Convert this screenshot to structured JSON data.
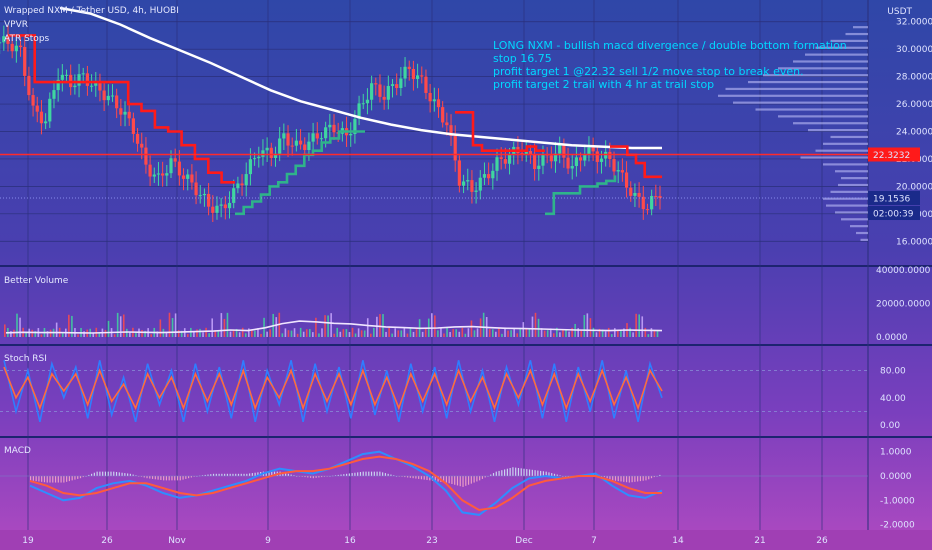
{
  "header": {
    "title": "Wrapped NXM / Tether USD, 4h, HUOBI",
    "currency": "USDT",
    "indicators": [
      "VPVR",
      "ATR Stops"
    ]
  },
  "annotation": {
    "lines": [
      "LONG NXM - bullish macd divergence / double bottom formation",
      "stop 16.75",
      "profit target 1 @22.32 sell 1/2 move stop to break even.",
      "profit target 2 trail with 4 hr at trail stop"
    ]
  },
  "price_badges": {
    "resistance": "22.3232",
    "last": "19.1536",
    "countdown": "02:00:39"
  },
  "panes": {
    "volume": "Better Volume",
    "stoch": "Stoch RSI",
    "macd": "MACD"
  },
  "colors": {
    "atr_stop_down": "#ff1a1a",
    "atr_stop_up": "#2fb38a",
    "moving_average": "#ffffff",
    "resistance_line": "#ff2a2a",
    "annotation": "#00d8ff",
    "stoch_k": "#2f7dff",
    "stoch_d": "#ff6a3d"
  },
  "chart_data": [
    {
      "type": "candlestick",
      "title": "Wrapped NXM / Tether USD, 4h, HUOBI",
      "ylim": [
        15.0,
        33.0
      ],
      "y_ticks": [
        "32.0000",
        "30.0000",
        "28.0000",
        "26.0000",
        "24.0000",
        "22.0000",
        "20.0000",
        "18.0000",
        "16.0000"
      ],
      "x_ticks": [
        "19",
        "26",
        "Nov",
        "9",
        "16",
        "23",
        "Dec",
        "7",
        "14",
        "21",
        "26"
      ],
      "close_series_approx": [
        30.5,
        29.8,
        25.5,
        24.8,
        28.2,
        27.5,
        28.0,
        27.2,
        26.5,
        25.6,
        24.2,
        21.5,
        20.5,
        21.8,
        20.8,
        19.8,
        18.6,
        18.3,
        19.5,
        21.0,
        22.6,
        22.3,
        23.6,
        22.9,
        23.2,
        23.9,
        24.3,
        23.6,
        25.6,
        27.3,
        26.6,
        27.6,
        28.6,
        27.6,
        26.0,
        24.6,
        20.5,
        19.8,
        20.6,
        21.7,
        22.3,
        22.7,
        21.6,
        22.1,
        22.6,
        21.3,
        22.6,
        22.2,
        22.0,
        20.6,
        19.2,
        18.5,
        19.6
      ],
      "atr_stop_series_approx": [
        {
          "side": "down",
          "values": [
            31.0,
            31.0,
            27.6,
            27.6,
            27.6,
            27.6,
            27.6,
            27.6,
            27.6,
            26.0,
            25.5,
            24.3,
            24.0,
            23.0,
            22.0,
            21.0,
            20.3,
            20.3
          ]
        },
        {
          "side": "up",
          "values": [
            18.0,
            18.5,
            18.9,
            19.4,
            20.0,
            20.3,
            20.9,
            21.5,
            22.3,
            22.6,
            23.2,
            23.5,
            24.0,
            24.0,
            24.0,
            24.0
          ]
        },
        {
          "side": "down",
          "values": [
            25.4,
            25.4,
            23.0,
            22.6,
            22.6,
            22.6,
            22.6,
            22.6,
            22.9,
            22.6,
            22.6
          ]
        },
        {
          "side": "up",
          "values": [
            18.0,
            19.5,
            19.5,
            19.5,
            20.0,
            20.0,
            20.2,
            20.4,
            20.8
          ]
        },
        {
          "side": "down",
          "values": [
            22.9,
            22.9,
            22.3,
            21.7,
            20.7,
            20.7,
            20.7
          ]
        }
      ],
      "moving_average_approx": [
        33.0,
        32.6,
        31.8,
        30.8,
        29.9,
        29.0,
        28.0,
        27.0,
        26.2,
        25.6,
        25.0,
        24.5,
        24.1,
        23.8,
        23.6,
        23.4,
        23.2,
        23.0,
        22.9,
        22.8,
        22.8
      ],
      "resistance": 22.3232,
      "last_price": 19.1536,
      "target_1": 22.32,
      "stop": 16.75
    },
    {
      "type": "bar",
      "title": "Better Volume",
      "ylim": [
        0,
        40000
      ],
      "y_ticks": [
        "40000.0000",
        "20000.0000",
        "0.0000"
      ],
      "average_approx": [
        2500,
        2800,
        2600,
        2700,
        2500,
        2400,
        2700,
        3000,
        2800,
        2600,
        2900,
        3200,
        3500,
        4200,
        3800,
        5500,
        8000,
        9500,
        9000,
        8200,
        7800,
        6800,
        6000,
        5600,
        5200,
        5400,
        6000,
        6200,
        5600,
        5200,
        5000,
        4800,
        4500,
        4200,
        4000,
        3800,
        4200,
        4000,
        3800
      ]
    },
    {
      "type": "line",
      "title": "Stoch RSI",
      "ylim": [
        -10,
        110
      ],
      "y_ticks": [
        "80.00",
        "40.00",
        "0.00"
      ],
      "guide_lines": [
        80,
        20
      ],
      "k_series_approx": [
        95,
        20,
        80,
        5,
        90,
        40,
        85,
        10,
        95,
        15,
        70,
        5,
        90,
        30,
        80,
        5,
        90,
        20,
        85,
        10,
        95,
        5,
        80,
        30,
        95,
        5,
        90,
        20,
        85,
        10,
        95,
        15,
        80,
        5,
        90,
        20,
        85,
        10,
        95,
        20,
        80,
        5,
        85,
        30,
        95,
        10,
        90,
        5,
        85,
        20,
        95,
        10,
        80,
        5,
        90,
        40
      ],
      "d_series_approx": [
        85,
        40,
        70,
        25,
        75,
        50,
        75,
        30,
        80,
        35,
        60,
        25,
        75,
        40,
        70,
        25,
        75,
        35,
        75,
        30,
        80,
        25,
        70,
        40,
        80,
        25,
        75,
        35,
        75,
        30,
        80,
        30,
        70,
        25,
        75,
        35,
        75,
        30,
        80,
        35,
        70,
        25,
        75,
        40,
        80,
        30,
        75,
        25,
        75,
        35,
        80,
        30,
        70,
        25,
        80,
        50
      ]
    },
    {
      "type": "line",
      "title": "MACD",
      "ylim": [
        -2.1,
        1.4
      ],
      "y_ticks": [
        "1.0000",
        "0.0000",
        "-1.0000",
        "-2.0000"
      ],
      "macd_series_approx": [
        -0.4,
        -0.7,
        -1.0,
        -0.9,
        -0.5,
        -0.3,
        -0.2,
        -0.4,
        -0.7,
        -0.9,
        -0.8,
        -0.6,
        -0.4,
        -0.2,
        0.1,
        0.3,
        0.2,
        0.1,
        0.3,
        0.6,
        0.9,
        1.0,
        0.7,
        0.4,
        0.0,
        -0.6,
        -1.5,
        -1.6,
        -1.1,
        -0.5,
        -0.1,
        0.0,
        -0.1,
        0.0,
        0.1,
        -0.4,
        -0.8,
        -0.9,
        -0.6
      ],
      "signal_series_approx": [
        -0.2,
        -0.4,
        -0.7,
        -0.8,
        -0.7,
        -0.5,
        -0.3,
        -0.3,
        -0.5,
        -0.7,
        -0.8,
        -0.7,
        -0.5,
        -0.3,
        -0.1,
        0.1,
        0.2,
        0.2,
        0.3,
        0.5,
        0.7,
        0.8,
        0.7,
        0.5,
        0.2,
        -0.3,
        -1.0,
        -1.4,
        -1.3,
        -0.9,
        -0.4,
        -0.2,
        -0.1,
        0.0,
        0.0,
        -0.2,
        -0.5,
        -0.7,
        -0.7
      ]
    }
  ]
}
